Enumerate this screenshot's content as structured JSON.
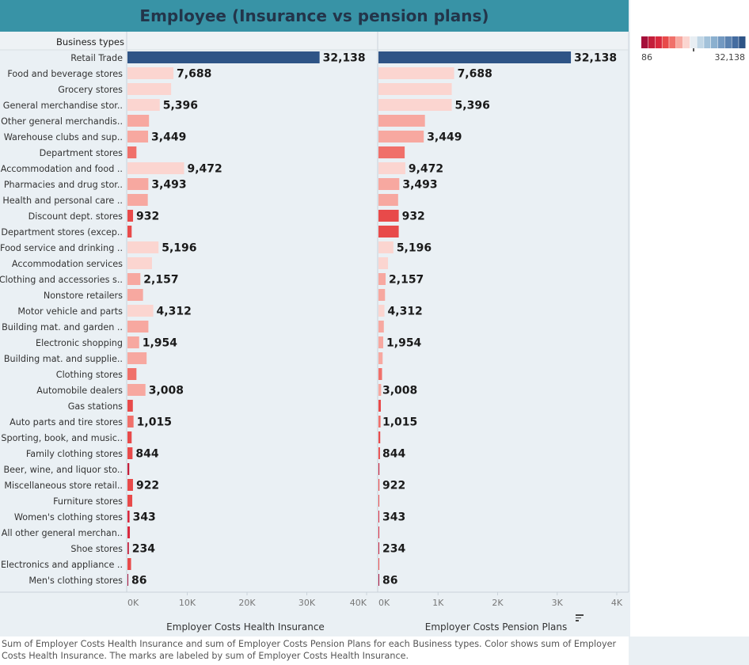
{
  "title": "Employee (Insurance vs pension plans)",
  "row_header": "Business types",
  "legend": {
    "min_label": "86",
    "max_label": "32,138",
    "colors": [
      "#a50f3a",
      "#c41e3a",
      "#d9283d",
      "#e84a4a",
      "#f0706a",
      "#f7a8a0",
      "#fbd5d0",
      "#e8eef3",
      "#c2d7e6",
      "#a3c2da",
      "#8bb0cf",
      "#7399c1",
      "#5b82b0",
      "#446ca0",
      "#2e5486"
    ]
  },
  "footer": "Sum of Employer Costs Health Insurance and sum of Employer Costs Pension Plans for each Business types.  Color shows sum of Employer Costs Health Insurance.  The marks are labeled by sum of Employer Costs Health Insurance.",
  "chart_data": {
    "type": "bar",
    "orientation": "horizontal",
    "title": "Employee (Insurance vs pension plans)",
    "categories": [
      "Retail Trade",
      "Food and beverage stores",
      "Grocery stores",
      "General merchandise stor..",
      "Other general merchandis..",
      "Warehouse clubs and sup..",
      "Department stores",
      "Accommodation and food ..",
      "Pharmacies and drug stor..",
      "Health and personal care ..",
      "Discount dept. stores",
      "Department stores (excep..",
      "Food service and drinking ..",
      "Accommodation services",
      "Clothing and accessories s..",
      "Nonstore retailers",
      "Motor vehicle and parts",
      "Building mat. and garden ..",
      "Electronic shopping",
      "Building mat. and supplie..",
      "Clothing stores",
      "Automobile dealers",
      "Gas stations",
      "Auto parts and tire stores",
      "Sporting, book,  and  music..",
      "Family clothing stores",
      "Beer, wine, and liquor sto..",
      "Miscellaneous store retail..",
      "Furniture stores",
      "Women's clothing stores",
      "All other general merchan..",
      "Shoe stores",
      "Electronics and appliance ..",
      "Men's clothing stores"
    ],
    "labels": [
      "32,138",
      "7,688",
      "",
      "5,396",
      "",
      "3,449",
      "",
      "9,472",
      "3,493",
      "",
      "932",
      "",
      "5,196",
      "",
      "2,157",
      "",
      "4,312",
      "",
      "1,954",
      "",
      "",
      "3,008",
      "",
      "1,015",
      "",
      "844",
      "",
      "922",
      "",
      "343",
      "",
      "234",
      "",
      "86"
    ],
    "color_values": [
      32138,
      7688,
      7300,
      5396,
      3000,
      3449,
      1000,
      9472,
      3493,
      3000,
      932,
      500,
      5196,
      3900,
      2157,
      2400,
      4312,
      3300,
      1954,
      3000,
      1100,
      3008,
      700,
      1015,
      500,
      844,
      200,
      922,
      800,
      343,
      300,
      234,
      500,
      86
    ],
    "series": [
      {
        "name": "Employer Costs Health Insurance",
        "xlabel": "Employer Costs Health Insurance",
        "ticks": [
          "0K",
          "10K",
          "20K",
          "30K",
          "40K"
        ],
        "xlim": [
          0,
          40000
        ],
        "values": [
          32138,
          7688,
          7300,
          5396,
          3600,
          3449,
          1500,
          9472,
          3493,
          3400,
          932,
          700,
          5196,
          4100,
          2157,
          2600,
          4312,
          3500,
          1954,
          3200,
          1500,
          3008,
          900,
          1015,
          700,
          844,
          300,
          922,
          800,
          343,
          400,
          234,
          600,
          86
        ]
      },
      {
        "name": "Employer Costs Pension Plans",
        "xlabel": "Employer Costs Pension Plans",
        "ticks": [
          "0K",
          "1K",
          "2K",
          "3K",
          "4K"
        ],
        "xlim": [
          0,
          4000
        ],
        "values": [
          3230,
          1270,
          1230,
          1230,
          780,
          760,
          440,
          450,
          350,
          330,
          340,
          340,
          250,
          160,
          120,
          110,
          100,
          90,
          80,
          70,
          60,
          45,
          40,
          35,
          30,
          25,
          15,
          15,
          10,
          5,
          5,
          5,
          5,
          5
        ]
      }
    ]
  }
}
